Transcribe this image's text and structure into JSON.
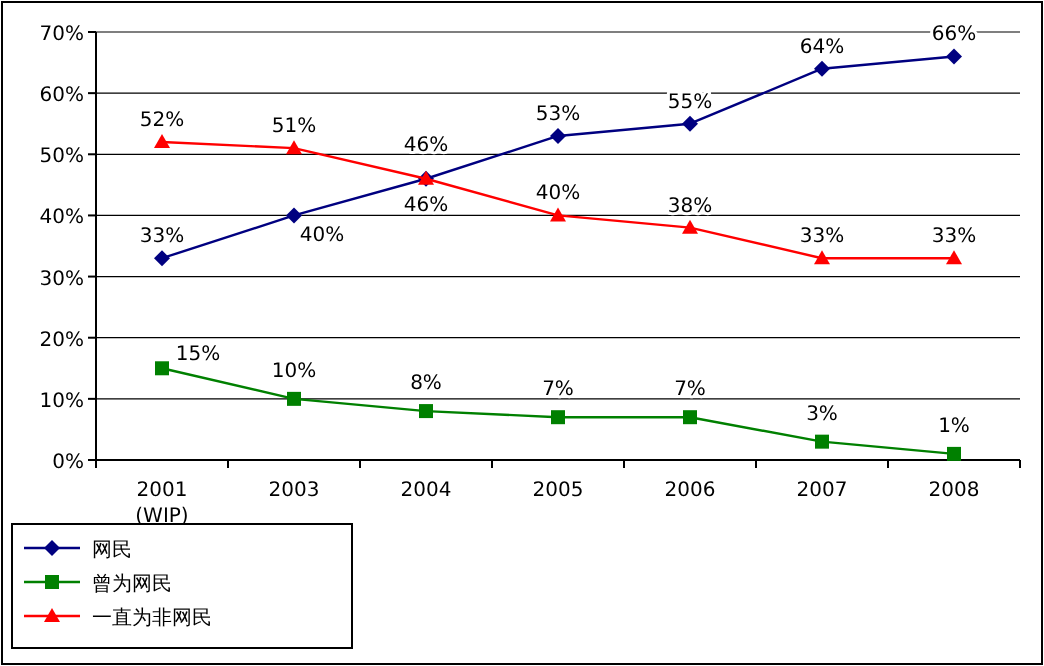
{
  "chart_data": {
    "type": "line",
    "categories": [
      "2001\n(WIP)",
      "2003",
      "2004",
      "2005",
      "2006",
      "2007",
      "2008"
    ],
    "series": [
      {
        "name": "网民",
        "color": "#000080",
        "marker": "diamond",
        "values": [
          33,
          40,
          46,
          53,
          55,
          64,
          66
        ],
        "value_labels": [
          "33%",
          "40%",
          "46%",
          "53%",
          "55%",
          "64%",
          "66%"
        ]
      },
      {
        "name": "曾为网民",
        "color": "#008000",
        "marker": "square",
        "values": [
          15,
          10,
          8,
          7,
          7,
          3,
          1
        ],
        "value_labels": [
          "15%",
          "10%",
          "8%",
          "7%",
          "7%",
          "3%",
          "1%"
        ]
      },
      {
        "name": "一直为非网民",
        "color": "#ff0000",
        "marker": "triangle",
        "values": [
          52,
          51,
          46,
          40,
          38,
          33,
          33
        ],
        "value_labels": [
          "52%",
          "51%",
          "46%",
          "40%",
          "38%",
          "33%",
          "33%"
        ]
      }
    ],
    "ylim": [
      0,
      70
    ],
    "yticks": [
      {
        "value": 0,
        "label": "0%"
      },
      {
        "value": 10,
        "label": "10%"
      },
      {
        "value": 20,
        "label": "20%"
      },
      {
        "value": 30,
        "label": "30%"
      },
      {
        "value": 40,
        "label": "40%"
      },
      {
        "value": 50,
        "label": "50%"
      },
      {
        "value": 60,
        "label": "60%"
      },
      {
        "value": 70,
        "label": "70%"
      }
    ],
    "grid": "y",
    "legend": "bottom left"
  }
}
